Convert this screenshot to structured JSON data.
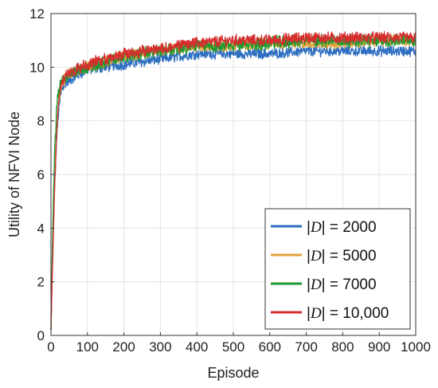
{
  "chart_data": {
    "type": "line",
    "title": "",
    "xlabel": "Episode",
    "ylabel": "Utility of NFVI Node",
    "xlim": [
      0,
      1000
    ],
    "ylim": [
      0,
      12
    ],
    "xticks": [
      0,
      100,
      200,
      300,
      400,
      500,
      600,
      700,
      800,
      900,
      1000
    ],
    "yticks": [
      0,
      2,
      4,
      6,
      8,
      10,
      12
    ],
    "grid": true,
    "legend_position": "bottom-right",
    "series": [
      {
        "name": "|D| = 2000",
        "label_parts": [
          "|",
          "D",
          "| = 2000"
        ],
        "color": "#2e6fc1",
        "x": [
          0,
          5,
          10,
          15,
          20,
          25,
          30,
          40,
          50,
          75,
          100,
          150,
          200,
          300,
          400,
          500,
          600,
          700,
          800,
          900,
          1000
        ],
        "values": [
          0.2,
          3.5,
          5.5,
          7.2,
          8.2,
          8.8,
          9.2,
          9.4,
          9.5,
          9.7,
          9.9,
          10.0,
          10.1,
          10.3,
          10.5,
          10.5,
          10.5,
          10.6,
          10.6,
          10.6,
          10.6
        ]
      },
      {
        "name": "|D| = 5000",
        "label_parts": [
          "|",
          "D",
          "| = 5000"
        ],
        "color": "#e0a33a",
        "x": [
          0,
          5,
          10,
          15,
          20,
          25,
          30,
          40,
          50,
          75,
          100,
          150,
          200,
          300,
          400,
          500,
          600,
          700,
          800,
          900,
          1000
        ],
        "values": [
          0.2,
          3.8,
          6.0,
          7.6,
          8.6,
          9.1,
          9.4,
          9.6,
          9.7,
          9.9,
          10.0,
          10.2,
          10.4,
          10.6,
          10.8,
          10.8,
          10.9,
          10.9,
          10.9,
          11.0,
          11.0
        ]
      },
      {
        "name": "|D| = 7000",
        "label_parts": [
          "|",
          "D",
          "| = 7000"
        ],
        "color": "#1e9a32",
        "x": [
          0,
          5,
          10,
          15,
          20,
          25,
          30,
          40,
          50,
          75,
          100,
          150,
          200,
          300,
          400,
          500,
          600,
          700,
          800,
          900,
          1000
        ],
        "values": [
          0.2,
          4.2,
          6.8,
          8.3,
          9.0,
          9.3,
          9.5,
          9.6,
          9.7,
          9.9,
          10.0,
          10.2,
          10.4,
          10.6,
          10.8,
          10.8,
          10.9,
          11.0,
          11.0,
          11.0,
          11.0
        ]
      },
      {
        "name": "|D| = 10,000",
        "label_parts": [
          "|",
          "D",
          "| = 10,000"
        ],
        "color": "#d62d2d",
        "x": [
          0,
          5,
          10,
          15,
          20,
          25,
          30,
          40,
          50,
          75,
          100,
          150,
          200,
          300,
          400,
          500,
          600,
          700,
          800,
          900,
          1000
        ],
        "values": [
          0.2,
          3.0,
          5.5,
          7.4,
          8.5,
          9.1,
          9.4,
          9.7,
          9.8,
          10.0,
          10.1,
          10.3,
          10.5,
          10.7,
          10.9,
          11.0,
          11.0,
          11.1,
          11.1,
          11.1,
          11.1
        ]
      }
    ]
  }
}
